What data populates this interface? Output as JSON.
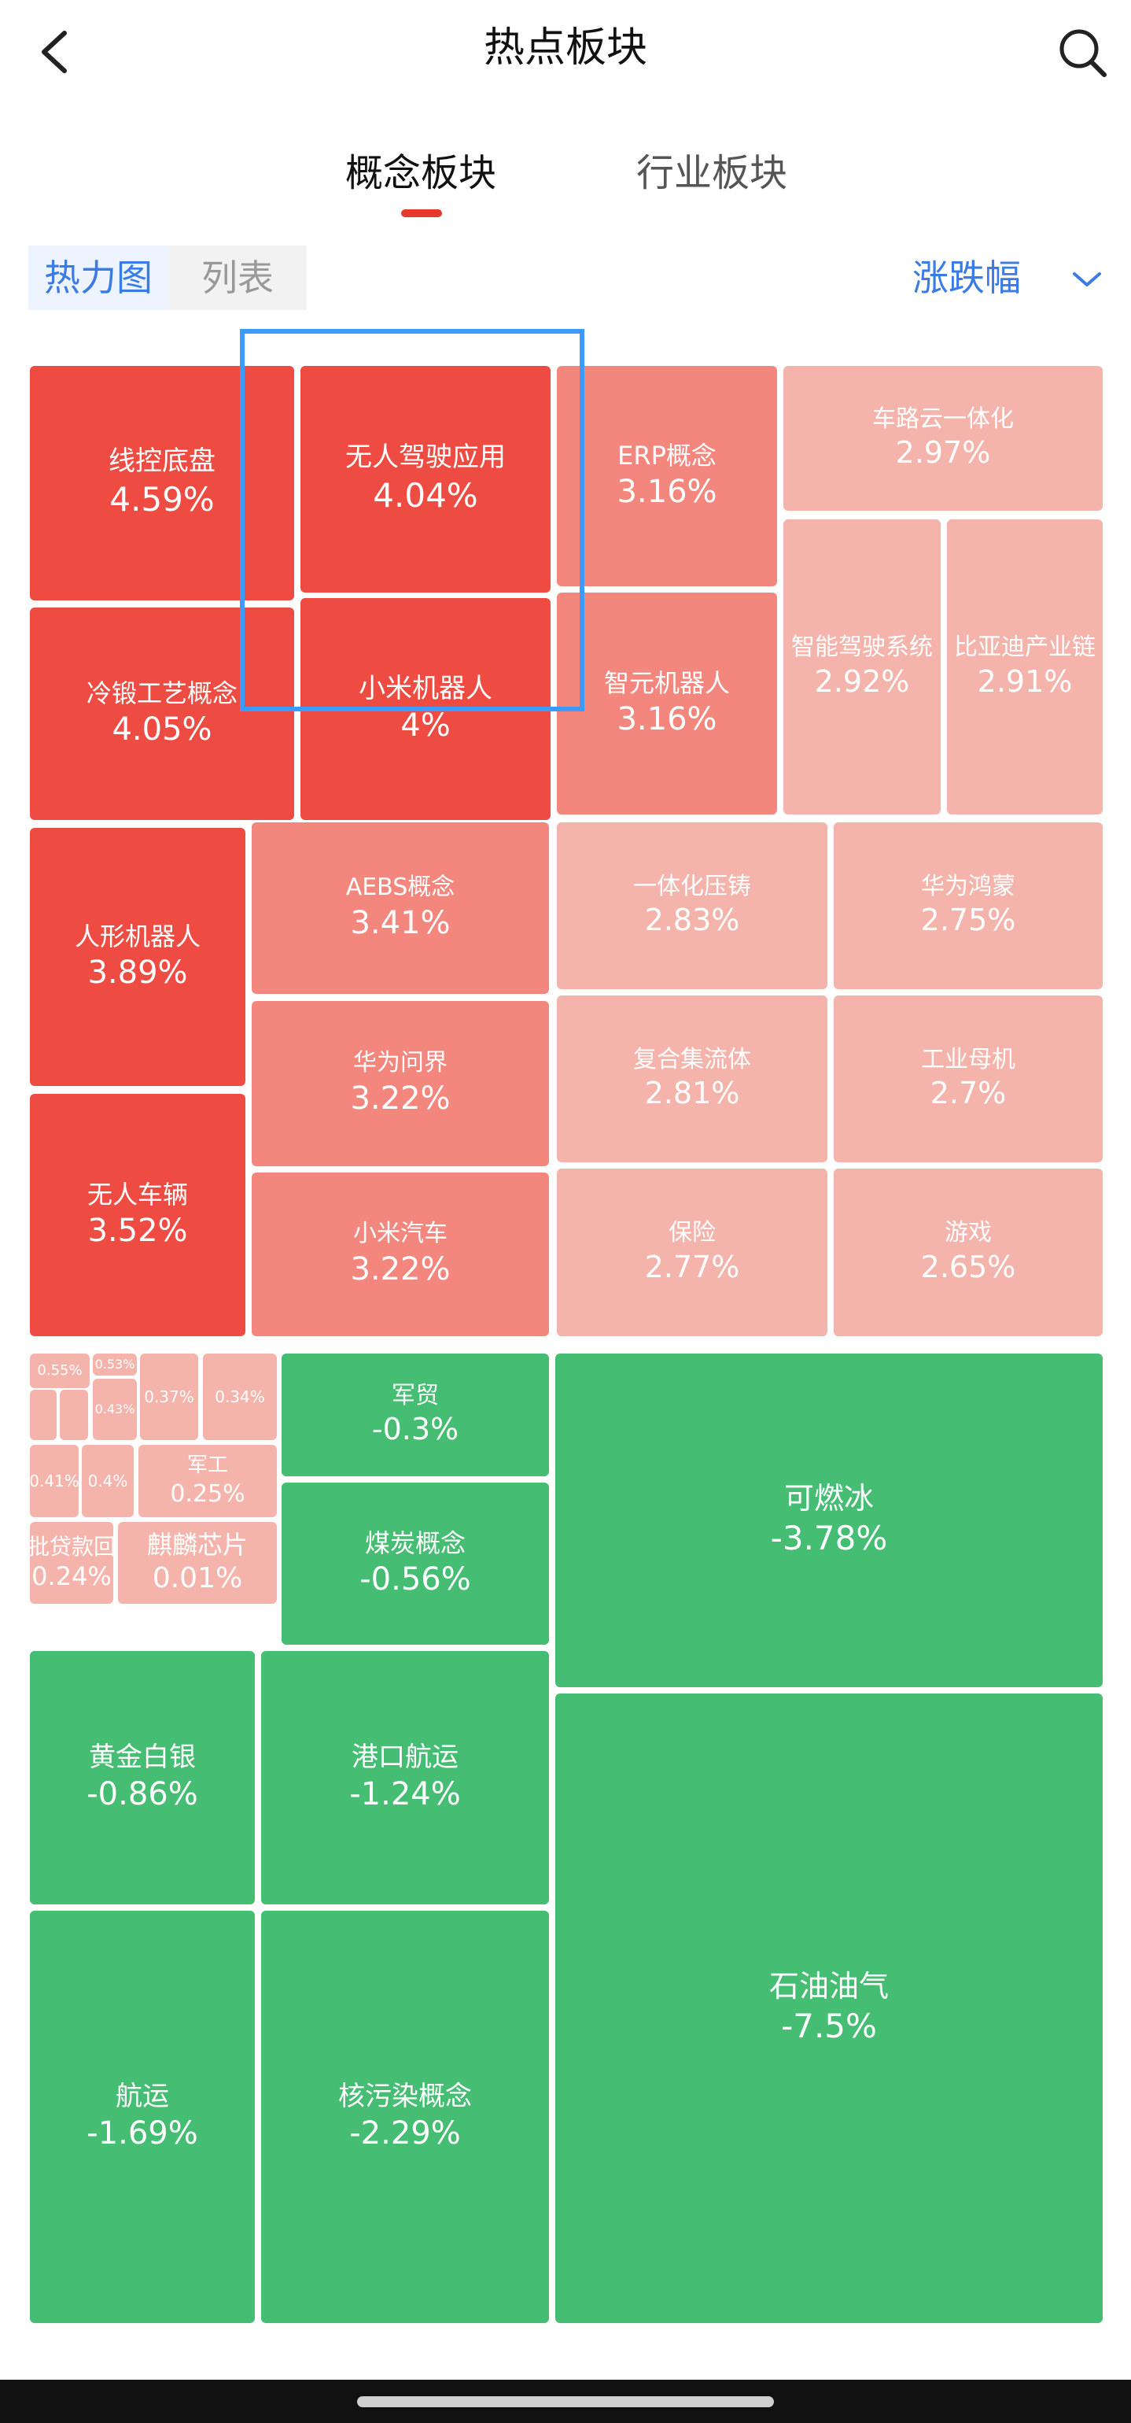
{
  "header": {
    "title": "热点板块",
    "back_icon": "chevron-left-icon",
    "search_icon": "search-icon"
  },
  "tabs": [
    {
      "label": "概念板块",
      "active": true
    },
    {
      "label": "行业板块",
      "active": false
    }
  ],
  "view_toggle": [
    {
      "label": "热力图",
      "active": true
    },
    {
      "label": "列表",
      "active": false
    }
  ],
  "sort": {
    "label": "涨跌幅",
    "icon": "chevron-down-icon"
  },
  "colors": {
    "up_strong": "#ee4c43",
    "up_medium": "#f4877d",
    "up_light": "#f5b4ab",
    "down": "#45bd72",
    "accent": "#3b7be6",
    "highlight": "#3d9bff"
  },
  "tiles": [
    {
      "name": "线控底盘",
      "value": "4.59%"
    },
    {
      "name": "无人驾驶应用",
      "value": "4.04%"
    },
    {
      "name": "ERP概念",
      "value": "3.16%"
    },
    {
      "name": "车路云一体化",
      "value": "2.97%"
    },
    {
      "name": "智能驾驶系统",
      "value": "2.92%"
    },
    {
      "name": "比亚迪产业链",
      "value": "2.91%"
    },
    {
      "name": "冷锻工艺概念",
      "value": "4.05%"
    },
    {
      "name": "小米机器人",
      "value": "4%"
    },
    {
      "name": "智元机器人",
      "value": "3.16%"
    },
    {
      "name": "人形机器人",
      "value": "3.89%"
    },
    {
      "name": "AEBS概念",
      "value": "3.41%"
    },
    {
      "name": "一体化压铸",
      "value": "2.83%"
    },
    {
      "name": "华为鸿蒙",
      "value": "2.75%"
    },
    {
      "name": "华为问界",
      "value": "3.22%"
    },
    {
      "name": "复合集流体",
      "value": "2.81%"
    },
    {
      "name": "工业母机",
      "value": "2.7%"
    },
    {
      "name": "无人车辆",
      "value": "3.52%"
    },
    {
      "name": "小米汽车",
      "value": "3.22%"
    },
    {
      "name": "保险",
      "value": "2.77%"
    },
    {
      "name": "游戏",
      "value": "2.65%"
    },
    {
      "name": "",
      "value": "0.55%"
    },
    {
      "name": "",
      "value": "0.53%"
    },
    {
      "name": "",
      "value": ""
    },
    {
      "name": "",
      "value": ""
    },
    {
      "name": "",
      "value": "0.43%"
    },
    {
      "name": "",
      "value": "0.37%"
    },
    {
      "name": "",
      "value": "0.34%"
    },
    {
      "name": "",
      "value": "0.41%"
    },
    {
      "name": "",
      "value": "0.4%"
    },
    {
      "name": "军工",
      "value": "0.25%"
    },
    {
      "name": "批贷款回",
      "value": "0.24%"
    },
    {
      "name": "麒麟芯片",
      "value": "0.01%"
    },
    {
      "name": "军贸",
      "value": "-0.3%"
    },
    {
      "name": "煤炭概念",
      "value": "-0.56%"
    },
    {
      "name": "可燃冰",
      "value": "-3.78%"
    },
    {
      "name": "黄金白银",
      "value": "-0.86%"
    },
    {
      "name": "港口航运",
      "value": "-1.24%"
    },
    {
      "name": "石油油气",
      "value": "-7.5%"
    },
    {
      "name": "航运",
      "value": "-1.69%"
    },
    {
      "name": "核污染概念",
      "value": "-2.29%"
    }
  ]
}
